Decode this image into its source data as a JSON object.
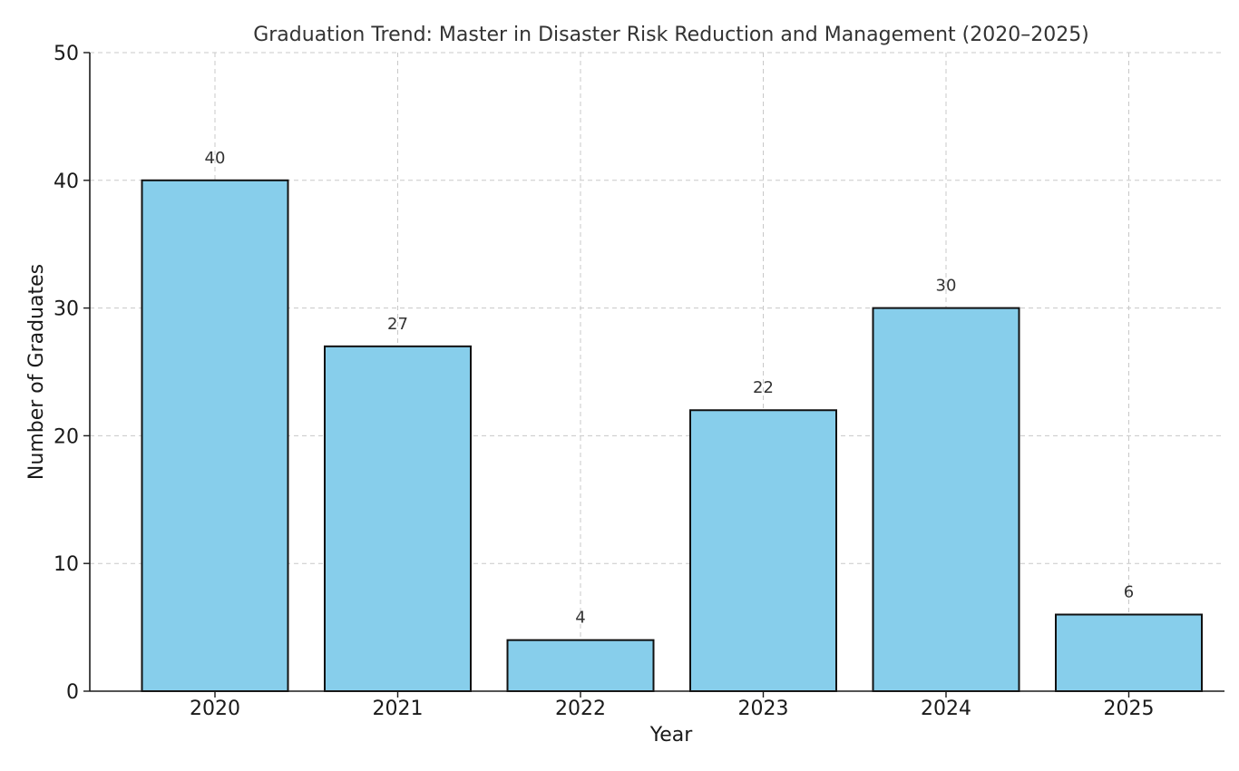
{
  "chart_data": {
    "type": "bar",
    "title": "Graduation Trend: Master in Disaster Risk Reduction and Management (2020–2025)",
    "xlabel": "Year",
    "ylabel": "Number of Graduates",
    "categories": [
      "2020",
      "2021",
      "2022",
      "2023",
      "2024",
      "2025"
    ],
    "values": [
      40,
      27,
      4,
      22,
      30,
      6
    ],
    "ylim": [
      0,
      50
    ],
    "yticks": [
      0,
      10,
      20,
      30,
      40,
      50
    ],
    "grid": true,
    "bar_color": "#87CEEB",
    "bar_edge_color": "#111111",
    "data_labels": true
  }
}
